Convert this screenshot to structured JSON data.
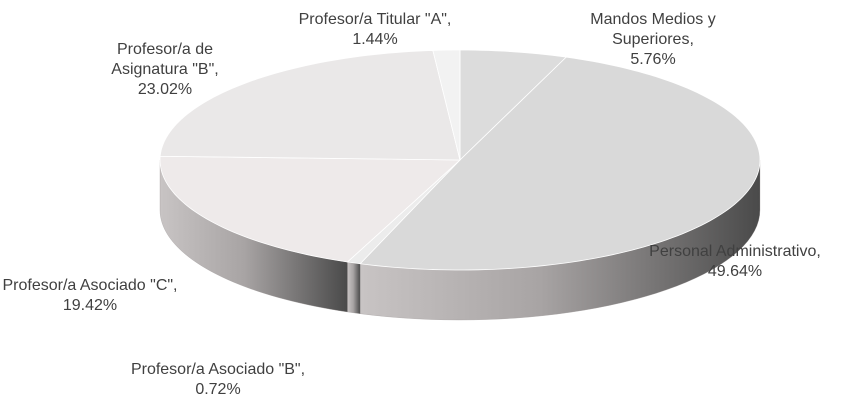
{
  "chart_data": {
    "type": "pie3d",
    "value_labels": [
      "Mandos Medios y Superiores, 5.76%",
      "Personal Administrativo, 49.64%",
      "Profesor/a Asociado \"B\", 0.72%",
      "Profesor/a Asociado \"C\", 19.42%",
      "Profesor/a de Asignatura \"B\", 23.02%",
      "Profesor/a Titular \"A\", 1.44%"
    ],
    "values": [
      5.76,
      49.64,
      0.72,
      19.42,
      23.02,
      1.44
    ],
    "colors": [
      "#dcdcdc",
      "#d9d9d9",
      "#ececec",
      "#eeeaea",
      "#eae8e8",
      "#f2f2f2"
    ]
  }
}
